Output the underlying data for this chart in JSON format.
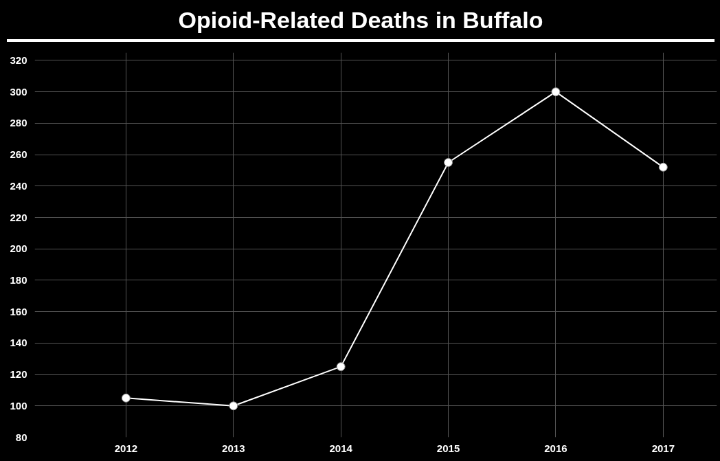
{
  "chart_data": {
    "type": "line",
    "title": "Opioid-Related Deaths in Buffalo",
    "x": [
      2012,
      2013,
      2014,
      2015,
      2016,
      2017
    ],
    "series": [
      {
        "color": "#ffffff",
        "values": [
          105,
          100,
          125,
          255,
          300,
          252
        ]
      }
    ],
    "xlim": [
      2011.15,
      2017.5
    ],
    "xticks": [
      2012,
      2013,
      2014,
      2015,
      2016,
      2017
    ],
    "ylim": [
      80,
      325
    ],
    "yticks": [
      80,
      100,
      120,
      140,
      160,
      180,
      200,
      220,
      240,
      260,
      280,
      300,
      320
    ],
    "grid": true,
    "marker": "circle",
    "line_style": "solid"
  }
}
